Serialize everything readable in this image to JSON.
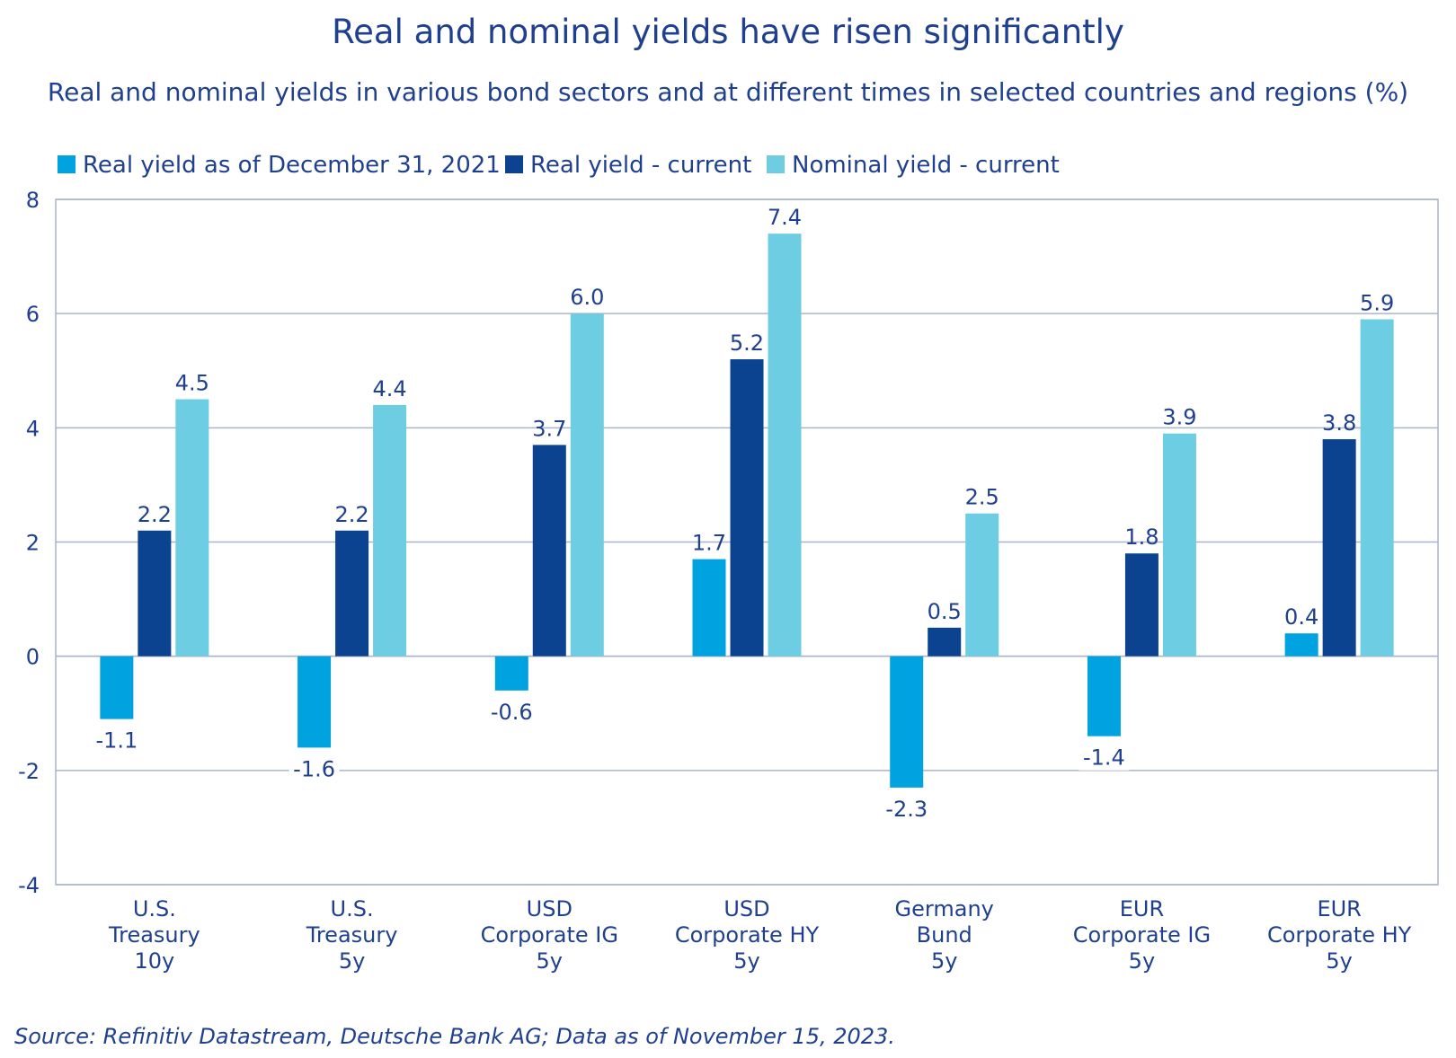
{
  "chart_data": {
    "type": "bar",
    "title": "Real and nominal yields have risen significantly",
    "subtitle": "Real and nominal yields in various bond sectors and at different times in selected countries and regions (%)",
    "categories": [
      [
        "U.S.",
        "Treasury",
        "10y"
      ],
      [
        "U.S.",
        "Treasury",
        "5y"
      ],
      [
        "USD",
        "Corporate IG",
        "5y"
      ],
      [
        "USD",
        "Corporate HY",
        "5y"
      ],
      [
        "Germany",
        "Bund",
        "5y"
      ],
      [
        "EUR",
        "Corporate IG",
        "5y"
      ],
      [
        "EUR",
        "Corporate HY",
        "5y"
      ]
    ],
    "series": [
      {
        "name": "Real yield as of December 31, 2021",
        "color": "#00a3df",
        "values": [
          -1.1,
          -1.6,
          -0.6,
          1.7,
          -2.3,
          -1.4,
          0.4
        ]
      },
      {
        "name": "Real yield - current",
        "color": "#0b4391",
        "values": [
          2.2,
          2.2,
          3.7,
          5.2,
          0.5,
          1.8,
          3.8
        ]
      },
      {
        "name": "Nominal yield - current",
        "color": "#6dcde2",
        "values": [
          4.5,
          4.4,
          6.0,
          7.4,
          2.5,
          3.9,
          5.9
        ]
      }
    ],
    "yticks": [
      8,
      6,
      4,
      2,
      0,
      -2,
      -4
    ],
    "ylim": [
      -4,
      8
    ],
    "xlabel": "",
    "ylabel": "",
    "legend": "top-left",
    "grid": true
  },
  "source": "Source: Refinitiv Datastream, Deutsche Bank AG; Data as of November 15, 2023."
}
